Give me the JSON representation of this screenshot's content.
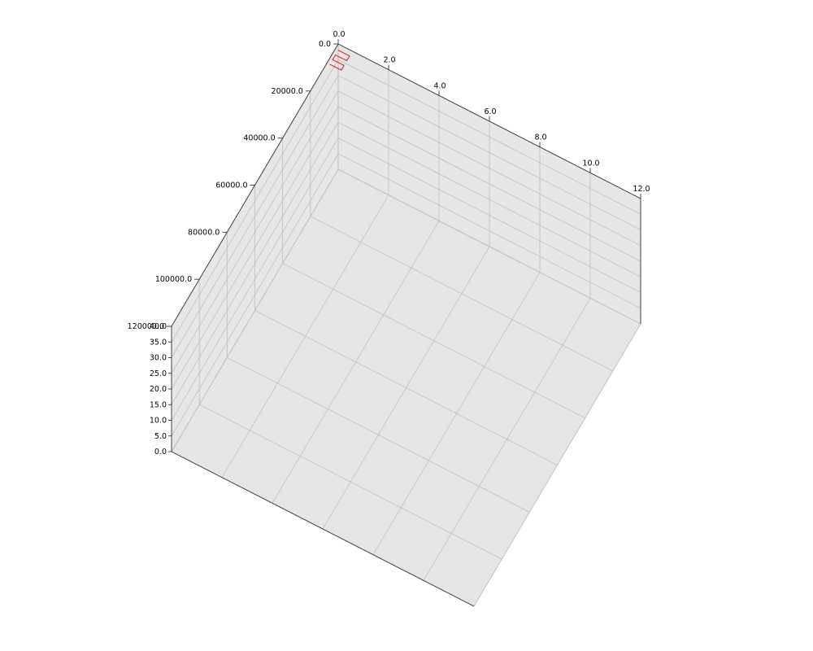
{
  "chart_data": {
    "type": "line",
    "projection": "3d",
    "title": "",
    "xlabel": "",
    "ylabel": "",
    "zlabel": "",
    "xlim": [
      0,
      12
    ],
    "ylim": [
      0,
      120000
    ],
    "zlim": [
      0,
      40
    ],
    "xticks": [
      "0.0",
      "2.0",
      "4.0",
      "6.0",
      "8.0",
      "10.0",
      "12.0"
    ],
    "yticks": [
      "0.0",
      "20000.0",
      "40000.0",
      "60000.0",
      "80000.0",
      "100000.0",
      "120000.0"
    ],
    "zticks": [
      "0.0",
      "5.0",
      "10.0",
      "15.0",
      "20.0",
      "25.0",
      "30.0",
      "35.0",
      "40.0"
    ],
    "grid": true,
    "legend": false,
    "series": [
      {
        "color": "#e41a1c",
        "points": [
          [
            0.0,
            0,
            38
          ],
          [
            0.2,
            0,
            38
          ],
          [
            0.45,
            0,
            38
          ],
          [
            0.45,
            2000,
            38
          ],
          [
            0.2,
            2000,
            38
          ],
          [
            0.0,
            2000,
            38
          ],
          [
            0.0,
            4000,
            38
          ],
          [
            0.2,
            4000,
            38
          ],
          [
            0.45,
            4000,
            38
          ],
          [
            0.45,
            6000,
            38
          ],
          [
            0.2,
            6000,
            38
          ],
          [
            0.0,
            6000,
            38
          ]
        ]
      }
    ]
  }
}
